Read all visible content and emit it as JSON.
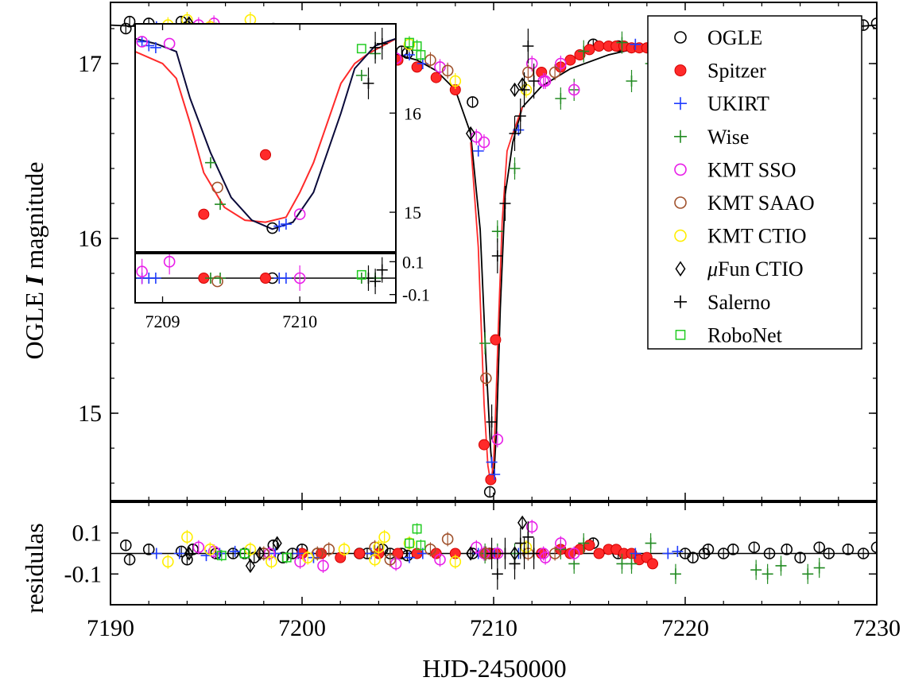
{
  "chart_data": {
    "type": "scatter",
    "xlabel": "HJD-2450000",
    "ylabel_main": "OGLE",
    "ylabel_italic": "I",
    "ylabel_tail": "magnitude",
    "ylabel_residuals": "residulas",
    "xlim": [
      7190,
      7230
    ],
    "ylim_main": [
      17.35,
      14.5
    ],
    "ylim_residuals": [
      0.25,
      -0.25
    ],
    "inverted_y": true,
    "x_ticks": [
      "7190",
      "7200",
      "7210",
      "7220",
      "7230"
    ],
    "y_ticks": [
      "15",
      "16",
      "17"
    ],
    "res_ticks": [
      "-0.1",
      "0.1"
    ],
    "legend_position": "top-right",
    "legend": [
      {
        "name": "OGLE",
        "marker": "circle-open",
        "color": "#000000"
      },
      {
        "name": "Spitzer",
        "marker": "circle-filled",
        "color": "#ff2a2a"
      },
      {
        "name": "UKIRT",
        "marker": "plus",
        "color": "#1f3cff"
      },
      {
        "name": "Wise",
        "marker": "plus",
        "color": "#228b22"
      },
      {
        "name": "KMT SSO",
        "marker": "circle-open",
        "color": "#e81ee8"
      },
      {
        "name": "KMT SAAO",
        "marker": "circle-open",
        "color": "#a0522d"
      },
      {
        "name": "KMT CTIO",
        "marker": "circle-open",
        "color": "#ffee00"
      },
      {
        "name": "μFun CTIO",
        "marker": "diamond-open",
        "color": "#000000"
      },
      {
        "name": "Salerno",
        "marker": "plus",
        "color": "#000000"
      },
      {
        "name": "RoboNet",
        "marker": "square-open",
        "color": "#22cc22"
      }
    ],
    "models": [
      {
        "color": "#000000",
        "x": [
          7190,
          7194,
          7198,
          7200,
          7202,
          7204,
          7206,
          7207,
          7208,
          7208.8,
          7209.3,
          7209.6,
          7209.85,
          7210.0,
          7210.15,
          7210.35,
          7210.6,
          7211,
          7211.5,
          7212.5,
          7214,
          7216,
          7218,
          7222,
          7226,
          7230
        ],
        "y": [
          17.22,
          17.2,
          17.17,
          17.15,
          17.12,
          17.08,
          17.02,
          16.96,
          16.85,
          16.6,
          16.05,
          15.3,
          14.78,
          14.62,
          14.9,
          15.6,
          16.25,
          16.55,
          16.75,
          16.87,
          16.97,
          17.05,
          17.1,
          17.15,
          17.19,
          17.22
        ]
      },
      {
        "color": "#ff2a2a",
        "x": [
          7208.8,
          7209.2,
          7209.5,
          7209.7,
          7209.85,
          7210.0,
          7210.1,
          7210.25,
          7210.45,
          7210.7,
          7211.0,
          7211.5
        ],
        "y": [
          16.55,
          15.95,
          15.05,
          14.7,
          14.6,
          14.72,
          15.0,
          15.5,
          16.1,
          16.5,
          16.6,
          16.75
        ]
      }
    ],
    "series": [
      {
        "name": "OGLE",
        "x": [
          7190.8,
          7191,
          7192,
          7193.7,
          7194,
          7194.3,
          7195.5,
          7196.4,
          7197,
          7197.5,
          7198,
          7198.5,
          7199,
          7199.5,
          7200,
          7200.8,
          7203,
          7203.4,
          7204.2,
          7204.6,
          7205.2,
          7205.5,
          7208.9,
          7209.8,
          7215.2,
          7216.5,
          7220,
          7220.4,
          7221,
          7221.2,
          7222,
          7222.5,
          7223.6,
          7224.4,
          7225.3,
          7226,
          7227,
          7227.5,
          7228.5,
          7229.3,
          7230
        ],
        "y": [
          17.2,
          17.24,
          17.23,
          17.24,
          17.21,
          17.2,
          17.2,
          17.18,
          17.17,
          17.16,
          17.18,
          17.2,
          17.15,
          17.19,
          17.15,
          17.14,
          17.08,
          17.09,
          17.1,
          17.08,
          17.07,
          17.06,
          16.78,
          14.55,
          17.11,
          17.1,
          17.14,
          17.14,
          17.13,
          17.15,
          17.16,
          17.16,
          17.18,
          17.18,
          17.18,
          17.19,
          17.2,
          17.2,
          17.22,
          17.22,
          17.23
        ],
        "r": [
          0.04,
          -0.03,
          0.02,
          0.01,
          -0.03,
          0.02,
          0,
          0,
          0,
          -0.02,
          0,
          0.04,
          -0.02,
          0,
          0.02,
          0,
          0,
          0,
          0.02,
          0,
          0,
          -0.01,
          0,
          0,
          0.05,
          0,
          0,
          -0.02,
          0,
          0.02,
          0,
          0.02,
          0.03,
          0,
          0.02,
          -0.02,
          0.03,
          0,
          0.02,
          0,
          0.03
        ]
      },
      {
        "name": "Spitzer",
        "x": [
          7200,
          7201,
          7202,
          7203,
          7204,
          7205,
          7206,
          7207,
          7208,
          7209.5,
          7209.85,
          7210.1,
          7212.5,
          7213.5,
          7214,
          7214.5,
          7215,
          7215.5,
          7216,
          7216.4,
          7216.8,
          7217.2,
          7217.6,
          7218,
          7218.3
        ],
        "y": [
          17.15,
          17.13,
          17.12,
          17.1,
          17.06,
          17.02,
          16.98,
          16.92,
          16.85,
          14.82,
          14.62,
          15.42,
          16.95,
          16.98,
          17.02,
          17.05,
          17.08,
          17.1,
          17.1,
          17.1,
          17.1,
          17.09,
          17.09,
          17.09,
          17.1
        ],
        "r": [
          0,
          0,
          -0.02,
          0,
          0,
          0,
          0,
          0,
          0,
          0,
          0,
          0,
          0,
          0.02,
          0,
          0.02,
          0.04,
          0,
          0.02,
          0.02,
          0,
          0,
          -0.03,
          -0.02,
          -0.05
        ]
      },
      {
        "name": "UKIRT",
        "x": [
          7192.4,
          7193.6,
          7195,
          7195.7,
          7196.5,
          7198.6,
          7199.8,
          7200.6,
          7203.6,
          7205.6,
          7206.3,
          7209.2,
          7209.9,
          7210.05,
          7211.3,
          7217.4,
          7219.1,
          7219.6
        ],
        "y": [
          17.21,
          17.2,
          17.19,
          17.18,
          17.17,
          17.16,
          17.16,
          17.14,
          17.1,
          17.05,
          17.0,
          16.5,
          14.72,
          14.65,
          16.62,
          17.11,
          17.13,
          17.14
        ],
        "r": [
          0,
          0,
          -0.01,
          0,
          0.01,
          0,
          0,
          -0.02,
          0,
          -0.02,
          0,
          0,
          0,
          0,
          0,
          0,
          0,
          0.01
        ]
      },
      {
        "name": "Wise",
        "x": [
          7209.55,
          7210.2,
          7211.1,
          7213.5,
          7214.2,
          7214.7,
          7216.7,
          7217.2,
          7218.2,
          7219.5,
          7223.7,
          7224.3,
          7225,
          7226.4,
          7227
        ],
        "y": [
          15.4,
          16.04,
          16.4,
          16.8,
          16.85,
          17.07,
          17.12,
          16.9,
          17.0,
          17.0,
          17.04,
          17.07,
          16.98,
          16.95,
          17.1
        ],
        "r": [
          0,
          0,
          0,
          0.02,
          -0.05,
          0.05,
          -0.05,
          -0.05,
          0.05,
          -0.1,
          -0.08,
          -0.1,
          -0.06,
          -0.1,
          -0.07
        ]
      },
      {
        "name": "KMT SSO",
        "x": [
          7194.6,
          7195.4,
          7198.3,
          7199.9,
          7201.1,
          7204.9,
          7207.2,
          7209.1,
          7209.5,
          7210.2,
          7212,
          7212.6,
          7212.7,
          7213.5,
          7214.2
        ],
        "y": [
          17.22,
          17.23,
          17.14,
          17.09,
          17.05,
          17.03,
          16.98,
          16.58,
          16.55,
          14.85,
          17.0,
          16.9,
          16.9,
          17.0,
          16.85
        ],
        "r": [
          0.03,
          0.01,
          0,
          -0.04,
          -0.06,
          -0.05,
          -0.03,
          0.03,
          0,
          0,
          0.13,
          0,
          -0.02,
          0.05,
          0
        ]
      },
      {
        "name": "KMT SAAO",
        "x": [
          7198,
          7200.8,
          7201.4,
          7203.8,
          7204.6,
          7206.7,
          7207.6,
          7209.6,
          7211.8,
          7213.2
        ],
        "y": [
          17.16,
          17.11,
          17.12,
          17.1,
          17.02,
          17.02,
          16.96,
          15.2,
          16.95,
          16.95
        ],
        "r": [
          0,
          0,
          0.02,
          0.03,
          -0.03,
          0.02,
          0.07,
          0,
          0,
          0
        ]
      },
      {
        "name": "KMT CTIO",
        "x": [
          7193,
          7194,
          7195.2,
          7197.3,
          7198.4,
          7200.3,
          7202.2,
          7203.8,
          7204,
          7204.3,
          7205.6,
          7208,
          7211.7
        ],
        "y": [
          17.22,
          17.25,
          17.21,
          17.25,
          17.18,
          17.15,
          17.1,
          17.1,
          17.09,
          17.09,
          17.11,
          16.9,
          16.85
        ],
        "r": [
          -0.04,
          0.08,
          0.02,
          0.02,
          -0.04,
          -0.02,
          0.02,
          -0.03,
          0.03,
          0.08,
          0.05,
          -0.04,
          0.03
        ]
      },
      {
        "name": "μFun CTIO",
        "x": [
          7194.1,
          7197.3,
          7197.8,
          7198.7,
          7208.8,
          7211.1,
          7211.5
        ],
        "y": [
          17.23,
          17.13,
          17.19,
          17.19,
          16.6,
          16.85,
          16.88
        ],
        "r": [
          0,
          -0.06,
          0,
          0.05,
          0,
          0,
          0.15
        ]
      },
      {
        "name": "Salerno",
        "x": [
          7209.9,
          7210.2,
          7210.6,
          7211.1,
          7211.4,
          7211.6,
          7211.8,
          7212.1
        ],
        "y": [
          14.95,
          15.9,
          16.2,
          16.6,
          16.7,
          16.85,
          17.1,
          16.9
        ],
        "r": [
          0,
          -0.1,
          0,
          -0.05,
          0.05,
          0,
          0.08,
          0
        ]
      },
      {
        "name": "RoboNet",
        "x": [
          7195.8,
          7197,
          7199.2,
          7205.6,
          7206,
          7206.2
        ],
        "y": [
          17.19,
          17.17,
          17.17,
          17.12,
          17.1,
          17.05
        ],
        "r": [
          -0.01,
          0,
          -0.02,
          0.05,
          0.12,
          0.04
        ]
      }
    ],
    "inset": {
      "xlim": [
        7208.8,
        7210.7
      ],
      "ylim": [
        16.9,
        14.6
      ],
      "ylim_residuals": [
        0.15,
        -0.15
      ],
      "x_ticks": [
        "7209",
        "7210"
      ],
      "y_ticks": [
        "15",
        "16"
      ],
      "res_ticks": [
        "-0.1",
        "0.1"
      ],
      "models": [
        {
          "color": "#ff2a2a",
          "x": [
            7208.8,
            7209.0,
            7209.1,
            7209.2,
            7209.3,
            7209.45,
            7209.6,
            7209.75,
            7209.9,
            7210.0,
            7210.1,
            7210.2,
            7210.3,
            7210.4,
            7210.5,
            7210.7
          ],
          "y": [
            16.62,
            16.5,
            16.35,
            15.9,
            15.4,
            15.05,
            14.92,
            14.9,
            14.95,
            15.2,
            15.5,
            15.9,
            16.3,
            16.5,
            16.6,
            16.75
          ]
        },
        {
          "color": "#0a0a3a",
          "x": [
            7208.8,
            7208.95,
            7209.1,
            7209.2,
            7209.35,
            7209.5,
            7209.65,
            7209.8,
            7209.95,
            7210.1,
            7210.2,
            7210.3,
            7210.4,
            7210.55,
            7210.7
          ],
          "y": [
            16.75,
            16.7,
            16.62,
            16.15,
            15.6,
            15.15,
            14.92,
            14.83,
            14.9,
            15.2,
            15.6,
            16.0,
            16.45,
            16.68,
            16.75
          ]
        }
      ],
      "points": [
        {
          "s": "OGLE",
          "x": 7209.8,
          "y": 14.84,
          "r": 0
        },
        {
          "s": "Spitzer",
          "x": 7209.3,
          "y": 14.98,
          "r": 0
        },
        {
          "s": "Spitzer",
          "x": 7209.75,
          "y": 15.58,
          "r": 0
        },
        {
          "s": "UKIRT",
          "x": 7208.85,
          "y": 16.72,
          "r": 0
        },
        {
          "s": "UKIRT",
          "x": 7208.9,
          "y": 16.68,
          "r": 0
        },
        {
          "s": "UKIRT",
          "x": 7208.95,
          "y": 16.66,
          "r": 0
        },
        {
          "s": "UKIRT",
          "x": 7209.85,
          "y": 14.86,
          "r": 0
        },
        {
          "s": "UKIRT",
          "x": 7209.9,
          "y": 14.88,
          "r": 0
        },
        {
          "s": "Wise",
          "x": 7209.35,
          "y": 15.5,
          "r": 0
        },
        {
          "s": "Wise",
          "x": 7209.42,
          "y": 15.08,
          "r": 0
        },
        {
          "s": "Wise",
          "x": 7210.45,
          "y": 16.38,
          "r": 0
        },
        {
          "s": "Wise",
          "x": 7210.55,
          "y": 16.6,
          "r": 0
        },
        {
          "s": "KMT SSO",
          "x": 7208.85,
          "y": 16.72,
          "r": 0.04
        },
        {
          "s": "KMT SSO",
          "x": 7209.05,
          "y": 16.7,
          "r": 0.1
        },
        {
          "s": "KMT SSO",
          "x": 7210.0,
          "y": 14.98,
          "r": 0
        },
        {
          "s": "KMT SAAO",
          "x": 7209.4,
          "y": 15.25,
          "r": -0.02
        },
        {
          "s": "Salerno",
          "x": 7210.5,
          "y": 16.3,
          "r": 0
        },
        {
          "s": "Salerno",
          "x": 7210.55,
          "y": 16.66,
          "r": -0.02
        },
        {
          "s": "Salerno",
          "x": 7210.6,
          "y": 16.7,
          "r": 0.05
        },
        {
          "s": "RoboNet",
          "x": 7210.45,
          "y": 16.65,
          "r": 0.02
        }
      ]
    }
  }
}
